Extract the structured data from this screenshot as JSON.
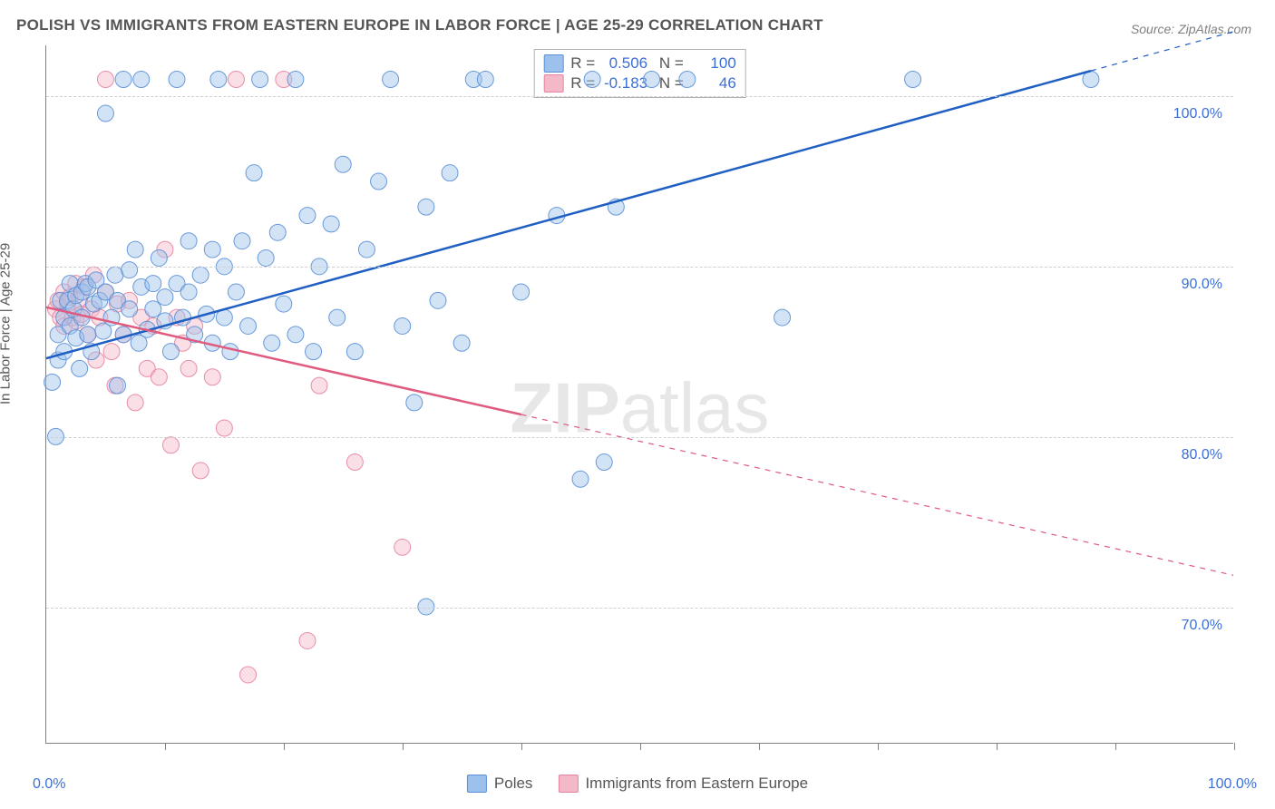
{
  "title": "POLISH VS IMMIGRANTS FROM EASTERN EUROPE IN LABOR FORCE | AGE 25-29 CORRELATION CHART",
  "source": "Source: ZipAtlas.com",
  "watermark_a": "ZIP",
  "watermark_b": "atlas",
  "ylabel": "In Labor Force | Age 25-29",
  "chart": {
    "type": "scatter-with-regression",
    "background_color": "#ffffff",
    "grid_color": "#d0d0d0",
    "axis_color": "#808080",
    "tick_label_color": "#3b6fd6",
    "xlim": [
      0,
      100
    ],
    "ylim": [
      62,
      103
    ],
    "x_ticks": [
      0,
      10,
      20,
      30,
      40,
      50,
      60,
      70,
      80,
      90,
      100
    ],
    "x_labels_shown": {
      "min": "0.0%",
      "max": "100.0%"
    },
    "y_gridlines": [
      70,
      80,
      90,
      100
    ],
    "y_labels": [
      "70.0%",
      "80.0%",
      "90.0%",
      "100.0%"
    ],
    "marker_radius": 9,
    "marker_opacity": 0.45,
    "marker_stroke_opacity": 0.9,
    "line_width_solid": 2.5,
    "line_width_dash": 1.2,
    "dash_pattern": "6 6",
    "series": [
      {
        "name": "Poles",
        "label": "Poles",
        "color_fill": "#9cc1ec",
        "color_stroke": "#5a8fd6",
        "line_color": "#1f5fc4",
        "R": "0.506",
        "N": "100",
        "regression": {
          "x1": 0,
          "y1": 84.6,
          "x2": 88,
          "y2": 101.5,
          "extrapolate_to": 100
        },
        "points": [
          [
            0.5,
            83.2
          ],
          [
            0.8,
            80.0
          ],
          [
            1.0,
            86.0
          ],
          [
            1.0,
            84.5
          ],
          [
            1.2,
            88.0
          ],
          [
            1.5,
            87.0
          ],
          [
            1.5,
            85.0
          ],
          [
            1.8,
            88.0
          ],
          [
            2.0,
            89.0
          ],
          [
            2.0,
            86.5
          ],
          [
            2.3,
            87.5
          ],
          [
            2.5,
            88.3
          ],
          [
            2.5,
            85.8
          ],
          [
            2.8,
            84.0
          ],
          [
            3.0,
            88.5
          ],
          [
            3.0,
            87.0
          ],
          [
            3.3,
            89.0
          ],
          [
            3.5,
            86.0
          ],
          [
            3.5,
            88.8
          ],
          [
            3.8,
            85.0
          ],
          [
            4.0,
            87.8
          ],
          [
            4.2,
            89.2
          ],
          [
            4.5,
            88.0
          ],
          [
            4.8,
            86.2
          ],
          [
            5.0,
            99.0
          ],
          [
            5.0,
            88.5
          ],
          [
            5.5,
            87.0
          ],
          [
            5.8,
            89.5
          ],
          [
            6.0,
            83.0
          ],
          [
            6.0,
            88.0
          ],
          [
            6.5,
            101.0
          ],
          [
            6.5,
            86.0
          ],
          [
            7.0,
            87.5
          ],
          [
            7.0,
            89.8
          ],
          [
            7.5,
            91.0
          ],
          [
            7.8,
            85.5
          ],
          [
            8.0,
            101.0
          ],
          [
            8.0,
            88.8
          ],
          [
            8.5,
            86.3
          ],
          [
            9.0,
            89.0
          ],
          [
            9.0,
            87.5
          ],
          [
            9.5,
            90.5
          ],
          [
            10.0,
            86.8
          ],
          [
            10.0,
            88.2
          ],
          [
            10.5,
            85.0
          ],
          [
            11.0,
            101.0
          ],
          [
            11.0,
            89.0
          ],
          [
            11.5,
            87.0
          ],
          [
            12.0,
            91.5
          ],
          [
            12.0,
            88.5
          ],
          [
            12.5,
            86.0
          ],
          [
            13.0,
            89.5
          ],
          [
            13.5,
            87.2
          ],
          [
            14.0,
            91.0
          ],
          [
            14.0,
            85.5
          ],
          [
            14.5,
            101.0
          ],
          [
            15.0,
            90.0
          ],
          [
            15.0,
            87.0
          ],
          [
            15.5,
            85.0
          ],
          [
            16.0,
            88.5
          ],
          [
            16.5,
            91.5
          ],
          [
            17.0,
            86.5
          ],
          [
            17.5,
            95.5
          ],
          [
            18.0,
            101.0
          ],
          [
            18.5,
            90.5
          ],
          [
            19.0,
            85.5
          ],
          [
            19.5,
            92.0
          ],
          [
            20.0,
            87.8
          ],
          [
            21.0,
            101.0
          ],
          [
            21.0,
            86.0
          ],
          [
            22.0,
            93.0
          ],
          [
            22.5,
            85.0
          ],
          [
            23.0,
            90.0
          ],
          [
            24.0,
            92.5
          ],
          [
            24.5,
            87.0
          ],
          [
            25.0,
            96.0
          ],
          [
            26.0,
            85.0
          ],
          [
            27.0,
            91.0
          ],
          [
            28.0,
            95.0
          ],
          [
            29.0,
            101.0
          ],
          [
            30.0,
            86.5
          ],
          [
            31.0,
            82.0
          ],
          [
            32.0,
            93.5
          ],
          [
            32.0,
            70.0
          ],
          [
            33.0,
            88.0
          ],
          [
            34.0,
            95.5
          ],
          [
            35.0,
            85.5
          ],
          [
            36.0,
            101.0
          ],
          [
            37.0,
            101.0
          ],
          [
            40.0,
            88.5
          ],
          [
            43.0,
            93.0
          ],
          [
            45.0,
            77.5
          ],
          [
            46.0,
            101.0
          ],
          [
            47.0,
            78.5
          ],
          [
            48.0,
            93.5
          ],
          [
            51.0,
            101.0
          ],
          [
            54.0,
            101.0
          ],
          [
            62.0,
            87.0
          ],
          [
            73.0,
            101.0
          ],
          [
            88.0,
            101.0
          ]
        ]
      },
      {
        "name": "Immigrants from Eastern Europe",
        "label": "Immigrants from Eastern Europe",
        "color_fill": "#f4b9c8",
        "color_stroke": "#e583a0",
        "line_color": "#e05a7e",
        "R": "-0.183",
        "N": "46",
        "regression": {
          "x1": 0,
          "y1": 87.6,
          "x2": 40,
          "y2": 81.3,
          "extrapolate_to": 100
        },
        "points": [
          [
            0.8,
            87.5
          ],
          [
            1.0,
            88.0
          ],
          [
            1.2,
            87.0
          ],
          [
            1.5,
            88.5
          ],
          [
            1.5,
            86.5
          ],
          [
            1.8,
            87.8
          ],
          [
            2.0,
            88.2
          ],
          [
            2.2,
            87.0
          ],
          [
            2.5,
            89.0
          ],
          [
            2.5,
            86.8
          ],
          [
            2.8,
            88.0
          ],
          [
            3.0,
            87.2
          ],
          [
            3.2,
            88.8
          ],
          [
            3.5,
            86.0
          ],
          [
            3.8,
            87.5
          ],
          [
            4.0,
            89.5
          ],
          [
            4.2,
            84.5
          ],
          [
            4.5,
            87.0
          ],
          [
            5.0,
            101.0
          ],
          [
            5.0,
            88.5
          ],
          [
            5.5,
            85.0
          ],
          [
            5.8,
            83.0
          ],
          [
            6.0,
            87.8
          ],
          [
            6.5,
            86.0
          ],
          [
            7.0,
            88.0
          ],
          [
            7.5,
            82.0
          ],
          [
            8.0,
            87.0
          ],
          [
            8.5,
            84.0
          ],
          [
            9.0,
            86.5
          ],
          [
            9.5,
            83.5
          ],
          [
            10.0,
            91.0
          ],
          [
            10.5,
            79.5
          ],
          [
            11.0,
            87.0
          ],
          [
            11.5,
            85.5
          ],
          [
            12.0,
            84.0
          ],
          [
            12.5,
            86.5
          ],
          [
            13.0,
            78.0
          ],
          [
            14.0,
            83.5
          ],
          [
            15.0,
            80.5
          ],
          [
            16.0,
            101.0
          ],
          [
            17.0,
            66.0
          ],
          [
            20.0,
            101.0
          ],
          [
            22.0,
            68.0
          ],
          [
            23.0,
            83.0
          ],
          [
            26.0,
            78.5
          ],
          [
            30.0,
            73.5
          ]
        ]
      }
    ]
  },
  "legend_bottom": [
    {
      "label": "Poles",
      "fill": "#9cc1ec",
      "stroke": "#5a8fd6"
    },
    {
      "label": "Immigrants from Eastern Europe",
      "fill": "#f4b9c8",
      "stroke": "#e583a0"
    }
  ]
}
